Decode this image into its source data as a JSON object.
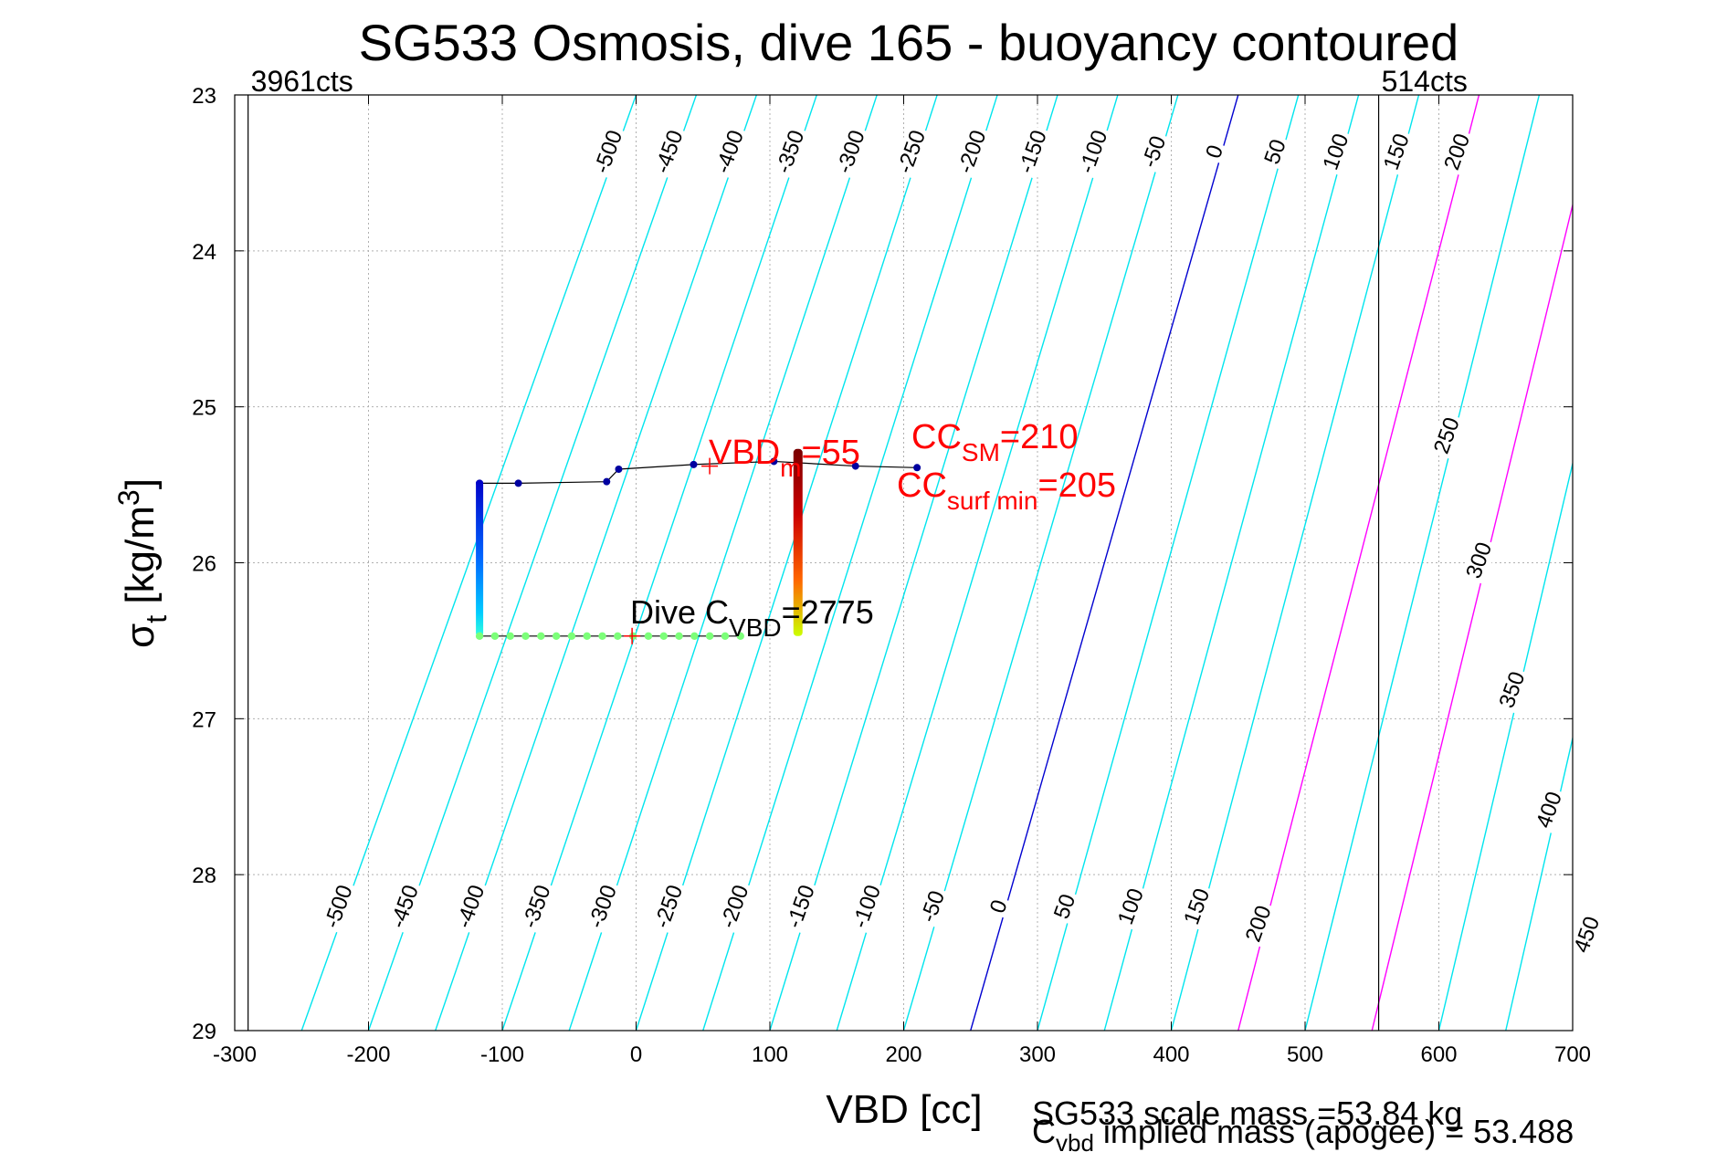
{
  "chart_data": {
    "type": "line",
    "title": "SG533 Osmosis, dive 165 - buoyancy contoured",
    "xlabel": "VBD [cc]",
    "ylabel": {
      "main": "σ",
      "sub": "t",
      "rest": " [kg/m",
      "sup": "3",
      "close": "]"
    },
    "xlim": [
      -300,
      700
    ],
    "ylim": [
      23,
      29
    ],
    "y_reversed": true,
    "grid": true,
    "x_ticks": [
      -300,
      -200,
      -100,
      0,
      100,
      200,
      300,
      400,
      500,
      600,
      700
    ],
    "y_ticks": [
      23,
      24,
      25,
      26,
      27,
      28,
      29
    ],
    "contour_levels": [
      -500,
      -450,
      -400,
      -350,
      -300,
      -250,
      -200,
      -150,
      -100,
      -50,
      0,
      50,
      100,
      150,
      200,
      250,
      300,
      350,
      400,
      450
    ],
    "contour_top_labels": [
      "-500",
      "-450",
      "-400",
      "-350",
      "-300",
      "-250",
      "-200",
      "-150",
      "-100",
      "-50",
      "0",
      "50",
      "100",
      "150",
      "200"
    ],
    "contour_bottom_labels": [
      "-500",
      "-450",
      "-400",
      "-350",
      "-300",
      "-250",
      "-200",
      "-150",
      "-100",
      "-50",
      "0",
      "50",
      "100",
      "150",
      "200"
    ],
    "contour_right_labels": [
      "250",
      "300",
      "350",
      "400",
      "450"
    ],
    "contour_colors": {
      "default": "#00e5ee",
      "zero": "#0000d0",
      "magenta": "#ff00ff"
    },
    "magenta_levels": [
      200,
      300
    ],
    "vertical_lines": [
      {
        "x": -290,
        "label": "3961cts"
      },
      {
        "x": 555,
        "label": "514cts"
      }
    ],
    "apogee_path": [
      {
        "x": -117,
        "y": 25.49
      },
      {
        "x": -88,
        "y": 25.49
      },
      {
        "x": -22,
        "y": 25.48
      },
      {
        "x": -13,
        "y": 25.4
      },
      {
        "x": 43,
        "y": 25.37
      },
      {
        "x": 103,
        "y": 25.35
      },
      {
        "x": 164,
        "y": 25.38
      },
      {
        "x": 210,
        "y": 25.39
      }
    ],
    "left_descent": {
      "x": -117,
      "y_start": 25.47,
      "y_end": 26.47
    },
    "bottom_points": {
      "x_start": -117,
      "x_end": 78,
      "y": 26.47,
      "count": 18
    },
    "right_column": {
      "x": 121,
      "y_start": 25.27,
      "y_end": 26.47
    },
    "markers": [
      {
        "x": 55,
        "y": 25.38
      },
      {
        "x": -3,
        "y": 26.47
      }
    ],
    "annotations": {
      "vbd_m": {
        "main": "VBD",
        "sub": "m",
        "rest": "=55"
      },
      "cc_sm": {
        "main": "CC",
        "sub": "SM",
        "rest": "=210"
      },
      "cc_surf": {
        "main": "CC",
        "sub": "surf min",
        "rest": "=205"
      },
      "dive_c": {
        "main": "Dive C",
        "sub": "VBD",
        "rest": "=2775"
      }
    },
    "footer": {
      "line1": "SG533 scale mass =53.84 kg",
      "line2_main": "C",
      "line2_sub": "vbd",
      "line2_rest": " implied mass (apogee) = 53.488"
    },
    "colors": {
      "annotation": "#ff0000",
      "path_points": "#0000a0",
      "bottom_points": "#7cff79"
    }
  }
}
